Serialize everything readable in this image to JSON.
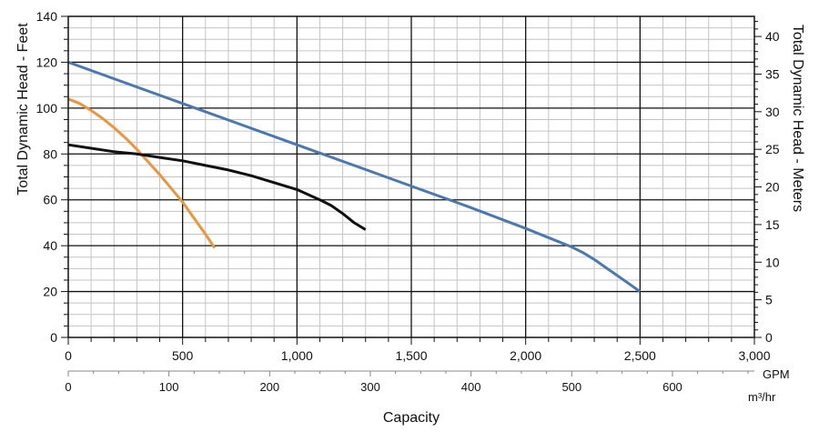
{
  "chart_data": {
    "type": "line",
    "title": "",
    "xlabel": "Capacity",
    "ylabel": "Total Dynamic Head - Feet",
    "ylabel_right": "Total Dynamic Head - Meters",
    "x_unit_primary": "GPM",
    "x_unit_secondary": "m³/hr",
    "xlim": [
      0,
      3000
    ],
    "ylim": [
      0,
      140
    ],
    "ylim_right_meters": [
      0,
      42.67
    ],
    "x_ticks": [
      {
        "value": 0,
        "label": "0"
      },
      {
        "value": 500,
        "label": "500"
      },
      {
        "value": 1000,
        "label": "1,000"
      },
      {
        "value": 1500,
        "label": "1,500"
      },
      {
        "value": 2000,
        "label": "2,000"
      },
      {
        "value": 2500,
        "label": "2,500"
      },
      {
        "value": 3000,
        "label": "3,000"
      }
    ],
    "x_ticks_secondary": [
      {
        "value": 0,
        "label": "0"
      },
      {
        "value": 100,
        "label": "100"
      },
      {
        "value": 200,
        "label": "200"
      },
      {
        "value": 300,
        "label": "300"
      },
      {
        "value": 400,
        "label": "400"
      },
      {
        "value": 500,
        "label": "500"
      },
      {
        "value": 600,
        "label": "600"
      }
    ],
    "y_ticks": [
      {
        "value": 0,
        "label": "0"
      },
      {
        "value": 20,
        "label": "20"
      },
      {
        "value": 40,
        "label": "40"
      },
      {
        "value": 60,
        "label": "60"
      },
      {
        "value": 80,
        "label": "80"
      },
      {
        "value": 100,
        "label": "100"
      },
      {
        "value": 120,
        "label": "120"
      },
      {
        "value": 140,
        "label": "140"
      }
    ],
    "y_ticks_right": [
      {
        "value": 0,
        "label": "0"
      },
      {
        "value": 5,
        "label": "5"
      },
      {
        "value": 10,
        "label": "10"
      },
      {
        "value": 15,
        "label": "15"
      },
      {
        "value": 20,
        "label": "20"
      },
      {
        "value": 25,
        "label": "25"
      },
      {
        "value": 30,
        "label": "30"
      },
      {
        "value": 35,
        "label": "35"
      },
      {
        "value": 40,
        "label": "40"
      }
    ],
    "grid": true,
    "series": [
      {
        "name": "orange-curve",
        "color": "#f0943c",
        "x": [
          0,
          50,
          100,
          150,
          200,
          250,
          300,
          350,
          400,
          450,
          500,
          550,
          600,
          640
        ],
        "y": [
          104,
          102,
          99,
          95.5,
          91.5,
          87,
          82,
          76.5,
          71,
          65,
          59,
          52,
          45,
          39
        ]
      },
      {
        "name": "black-curve",
        "color": "#111111",
        "x": [
          0,
          100,
          200,
          300,
          400,
          500,
          600,
          700,
          800,
          900,
          1000,
          1100,
          1150,
          1200,
          1250,
          1300
        ],
        "y": [
          84,
          82.5,
          81,
          80,
          78.5,
          77,
          75,
          73,
          70.5,
          67.5,
          64.5,
          60,
          57.5,
          54,
          50,
          47
        ]
      },
      {
        "name": "blue-curve",
        "color": "#4a78b0",
        "x": [
          0,
          250,
          500,
          750,
          1000,
          1250,
          1500,
          1750,
          2000,
          2100,
          2200,
          2250,
          2300,
          2350,
          2400,
          2450,
          2500
        ],
        "y": [
          120,
          111,
          102,
          93,
          84,
          75,
          66,
          57,
          47.5,
          43.5,
          39.5,
          37,
          34,
          30.5,
          27,
          23.5,
          20
        ]
      }
    ]
  }
}
